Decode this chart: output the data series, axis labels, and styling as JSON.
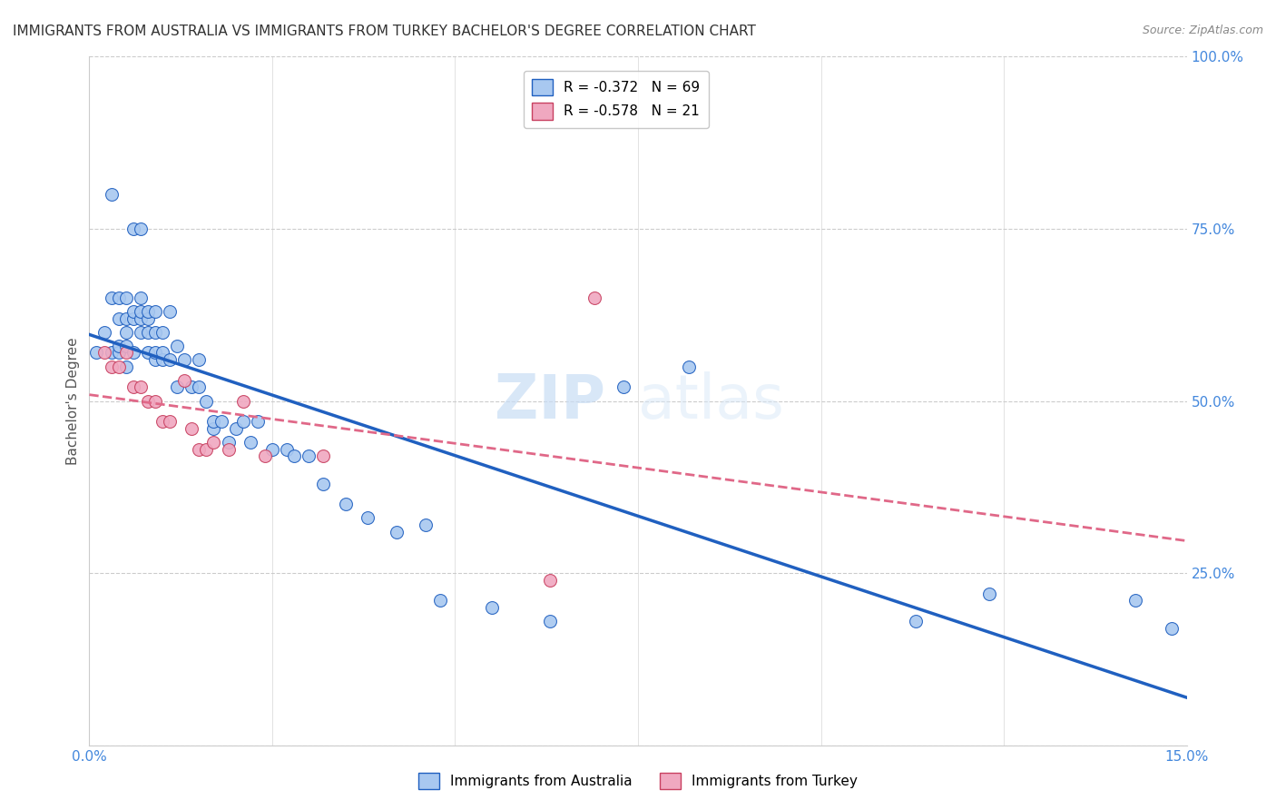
{
  "title": "IMMIGRANTS FROM AUSTRALIA VS IMMIGRANTS FROM TURKEY BACHELOR'S DEGREE CORRELATION CHART",
  "source": "Source: ZipAtlas.com",
  "ylabel_label": "Bachelor's Degree",
  "xlim": [
    0.0,
    0.15
  ],
  "ylim": [
    0.0,
    1.0
  ],
  "xticks": [
    0.0,
    0.025,
    0.05,
    0.075,
    0.1,
    0.125,
    0.15
  ],
  "xtick_labels": [
    "0.0%",
    "",
    "",
    "",
    "",
    "",
    "15.0%"
  ],
  "yticks": [
    0.0,
    0.25,
    0.5,
    0.75,
    1.0
  ],
  "ytick_labels": [
    "",
    "25.0%",
    "50.0%",
    "75.0%",
    "100.0%"
  ],
  "legend_R_australia": "-0.372",
  "legend_N_australia": "69",
  "legend_R_turkey": "-0.578",
  "legend_N_turkey": "21",
  "australia_color": "#a8c8f0",
  "turkey_color": "#f0a8c0",
  "australia_line_color": "#2060c0",
  "turkey_line_color": "#e06888",
  "watermark_zip": "ZIP",
  "watermark_atlas": "atlas",
  "grid_color": "#cccccc",
  "background_color": "#ffffff",
  "title_fontsize": 11,
  "axis_label_fontsize": 11,
  "tick_fontsize": 11,
  "scatter_size": 100,
  "australia_x": [
    0.001,
    0.002,
    0.003,
    0.003,
    0.003,
    0.004,
    0.004,
    0.004,
    0.004,
    0.005,
    0.005,
    0.005,
    0.005,
    0.005,
    0.006,
    0.006,
    0.006,
    0.006,
    0.007,
    0.007,
    0.007,
    0.007,
    0.007,
    0.008,
    0.008,
    0.008,
    0.008,
    0.009,
    0.009,
    0.009,
    0.009,
    0.01,
    0.01,
    0.01,
    0.011,
    0.011,
    0.012,
    0.012,
    0.013,
    0.014,
    0.015,
    0.015,
    0.016,
    0.017,
    0.017,
    0.018,
    0.019,
    0.02,
    0.021,
    0.022,
    0.023,
    0.025,
    0.027,
    0.028,
    0.03,
    0.032,
    0.035,
    0.038,
    0.042,
    0.046,
    0.048,
    0.055,
    0.063,
    0.073,
    0.082,
    0.113,
    0.123,
    0.143,
    0.148
  ],
  "australia_y": [
    0.57,
    0.6,
    0.57,
    0.8,
    0.65,
    0.57,
    0.58,
    0.62,
    0.65,
    0.55,
    0.58,
    0.62,
    0.6,
    0.65,
    0.57,
    0.62,
    0.63,
    0.75,
    0.6,
    0.62,
    0.63,
    0.65,
    0.75,
    0.57,
    0.6,
    0.62,
    0.63,
    0.56,
    0.57,
    0.6,
    0.63,
    0.56,
    0.57,
    0.6,
    0.56,
    0.63,
    0.52,
    0.58,
    0.56,
    0.52,
    0.56,
    0.52,
    0.5,
    0.46,
    0.47,
    0.47,
    0.44,
    0.46,
    0.47,
    0.44,
    0.47,
    0.43,
    0.43,
    0.42,
    0.42,
    0.38,
    0.35,
    0.33,
    0.31,
    0.32,
    0.21,
    0.2,
    0.18,
    0.52,
    0.55,
    0.18,
    0.22,
    0.21,
    0.17
  ],
  "turkey_x": [
    0.002,
    0.003,
    0.004,
    0.005,
    0.006,
    0.007,
    0.008,
    0.009,
    0.01,
    0.011,
    0.013,
    0.014,
    0.015,
    0.016,
    0.017,
    0.019,
    0.021,
    0.024,
    0.032,
    0.063,
    0.069
  ],
  "turkey_y": [
    0.57,
    0.55,
    0.55,
    0.57,
    0.52,
    0.52,
    0.5,
    0.5,
    0.47,
    0.47,
    0.53,
    0.46,
    0.43,
    0.43,
    0.44,
    0.43,
    0.5,
    0.42,
    0.42,
    0.24,
    0.65
  ]
}
